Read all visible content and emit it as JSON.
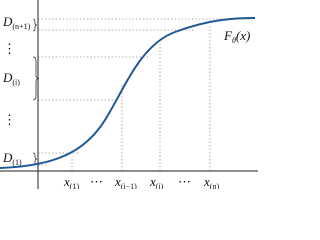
{
  "curve_label": {
    "main": "F",
    "sub": "θ",
    "arg": "(x)"
  },
  "y_labels": [
    {
      "main": "D",
      "sub": "(n+1)"
    },
    {
      "main": "⋮"
    },
    {
      "main": "D",
      "sub": "(i)"
    },
    {
      "main": "⋮"
    },
    {
      "main": "D",
      "sub": "(1)"
    }
  ],
  "x_labels": [
    {
      "main": "x",
      "sub": "(1)"
    },
    {
      "main": "⋯"
    },
    {
      "main": "x",
      "sub": "(i−1)"
    },
    {
      "main": "x",
      "sub": "(i)"
    },
    {
      "main": "⋯"
    },
    {
      "main": "x",
      "sub": "(n)"
    }
  ]
}
